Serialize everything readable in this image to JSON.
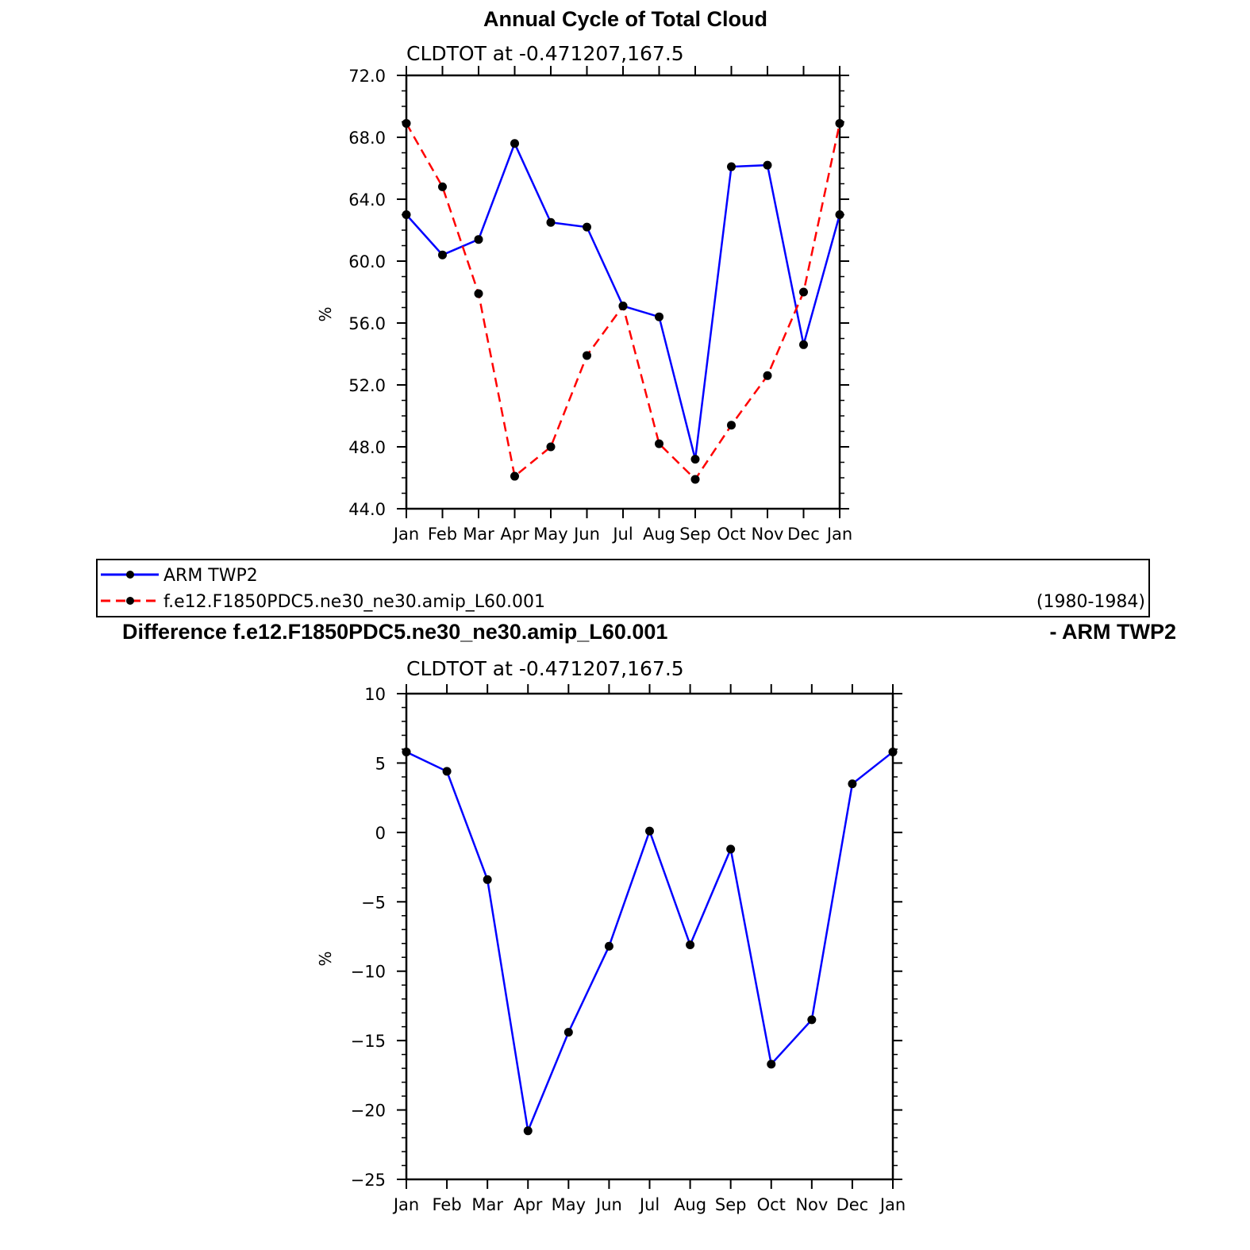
{
  "chart_data": [
    {
      "type": "line",
      "title": "Annual Cycle of Total Cloud",
      "subtitle": "CLDTOT at -0.471207,167.5",
      "xlabel": "",
      "ylabel": "%",
      "categories": [
        "Jan",
        "Feb",
        "Mar",
        "Apr",
        "May",
        "Jun",
        "Jul",
        "Aug",
        "Sep",
        "Oct",
        "Nov",
        "Dec",
        "Jan"
      ],
      "ylim": [
        44.0,
        72.0
      ],
      "yticks": [
        "72.0",
        "68.0",
        "64.0",
        "60.0",
        "56.0",
        "52.0",
        "48.0",
        "44.0"
      ],
      "grid": false,
      "series": [
        {
          "name": "ARM TWP2",
          "color": "#0000ff",
          "dash": "solid",
          "values": [
            63.0,
            60.4,
            61.4,
            67.6,
            62.5,
            62.2,
            57.1,
            56.4,
            47.2,
            66.1,
            66.2,
            54.6,
            63.0
          ]
        },
        {
          "name": "f.e12.F1850PDC5.ne30_ne30.amip_L60.001",
          "color": "#ff0000",
          "dash": "dashed",
          "values": [
            68.9,
            64.8,
            57.9,
            46.1,
            48.0,
            53.9,
            57.1,
            48.2,
            45.9,
            49.4,
            52.6,
            58.0,
            68.9
          ]
        }
      ]
    },
    {
      "type": "line",
      "title": "Difference f.e12.F1850PDC5.ne30_ne30.amip_L60.001",
      "title_right": "- ARM TWP2",
      "subtitle": "CLDTOT at -0.471207,167.5",
      "xlabel": "",
      "ylabel": "%",
      "categories": [
        "Jan",
        "Feb",
        "Mar",
        "Apr",
        "May",
        "Jun",
        "Jul",
        "Aug",
        "Sep",
        "Oct",
        "Nov",
        "Dec",
        "Jan"
      ],
      "ylim": [
        -25,
        10
      ],
      "yticks": [
        "10",
        "5",
        "0",
        "-5",
        "-10",
        "-15",
        "-20",
        "-25"
      ],
      "grid": false,
      "series": [
        {
          "color": "#0000ff",
          "dash": "solid",
          "values": [
            5.8,
            4.4,
            -3.4,
            -21.5,
            -14.4,
            -8.2,
            0.1,
            -8.1,
            -1.2,
            -16.7,
            -13.5,
            3.5,
            5.8
          ]
        }
      ]
    }
  ],
  "legend": {
    "items": [
      {
        "label": "ARM TWP2",
        "color": "#0000ff",
        "dash": "solid"
      },
      {
        "label": "f.e12.F1850PDC5.ne30_ne30.amip_L60.001",
        "color": "#ff0000",
        "dash": "dashed"
      }
    ],
    "period": "(1980-1984)"
  }
}
